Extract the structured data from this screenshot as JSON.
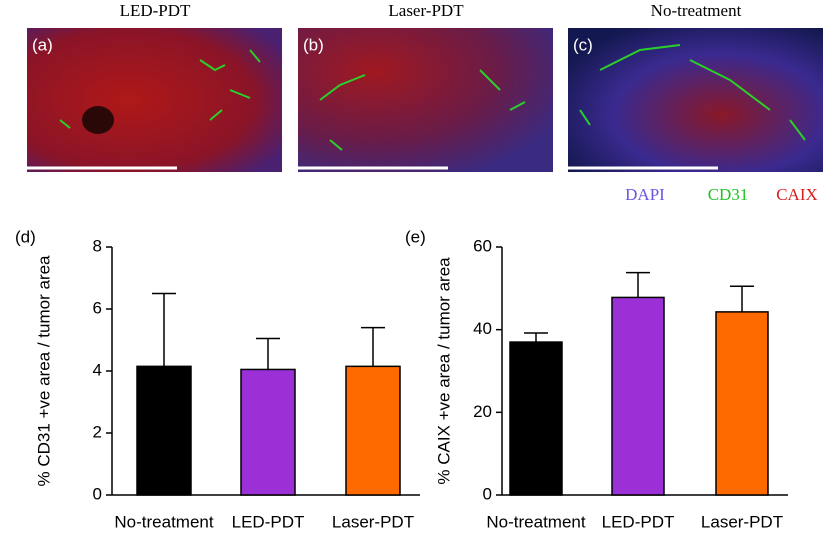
{
  "images": {
    "panels": [
      {
        "title": "LED-PDT",
        "label": "(a)"
      },
      {
        "title": "Laser-PDT",
        "label": "(b)"
      },
      {
        "title": "No-treatment",
        "label": "(c)"
      }
    ],
    "stains": [
      {
        "name": "DAPI",
        "color": "#6a55e0"
      },
      {
        "name": "CD31",
        "color": "#22c422"
      },
      {
        "name": "CAIX",
        "color": "#d81e1e"
      }
    ]
  },
  "chart_data": [
    {
      "type": "bar",
      "panel_label": "(d)",
      "y_label": "% CD31 +ve area / tumor area",
      "categories": [
        "No-treatment",
        "LED-PDT",
        "Laser-PDT"
      ],
      "values": [
        4.15,
        4.05,
        4.15
      ],
      "errors": [
        2.35,
        1.0,
        1.25
      ],
      "colors": [
        "#000000",
        "#9b30d6",
        "#ff6a00"
      ],
      "ylim": [
        0,
        8
      ],
      "yticks": [
        0,
        2,
        4,
        6,
        8
      ]
    },
    {
      "type": "bar",
      "panel_label": "(e)",
      "y_label": "% CAIX +ve area / tumor area",
      "categories": [
        "No-treatment",
        "LED-PDT",
        "Laser-PDT"
      ],
      "values": [
        37,
        47.8,
        44.3
      ],
      "errors": [
        2.2,
        6,
        6.2
      ],
      "colors": [
        "#000000",
        "#9b30d6",
        "#ff6a00"
      ],
      "ylim": [
        0,
        60
      ],
      "yticks": [
        0,
        20,
        40,
        60
      ]
    }
  ]
}
